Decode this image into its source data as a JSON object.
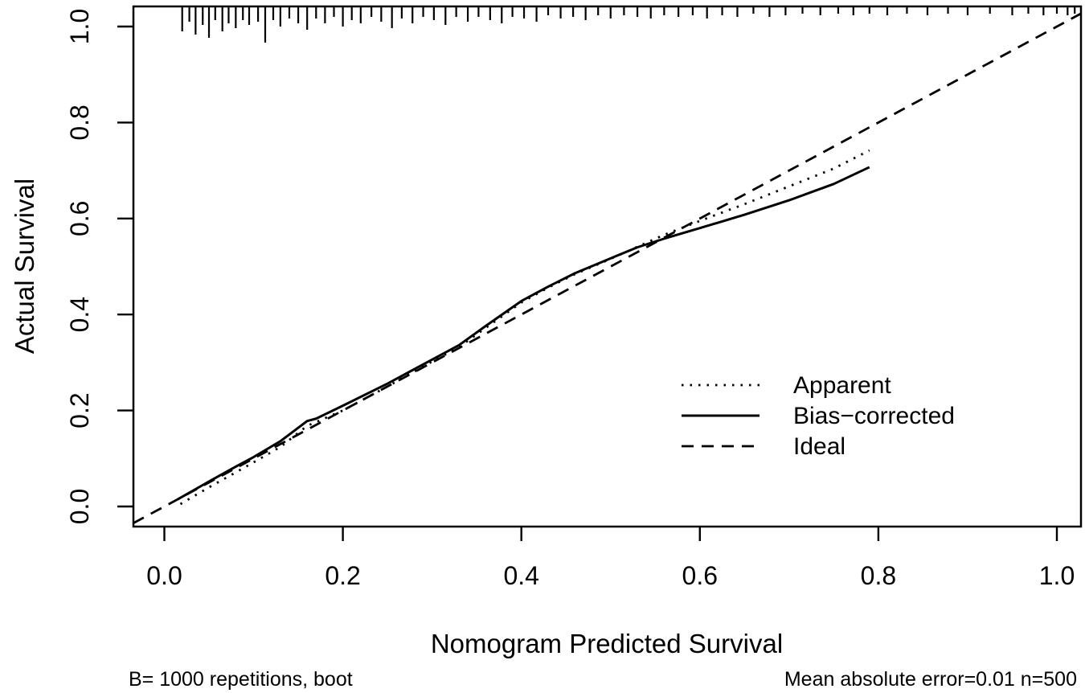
{
  "figure": {
    "background": "#ffffff",
    "ink_color": "#000000"
  },
  "axes": {
    "x_title": "Nomogram Predicted Survival",
    "y_title": "Actual Survival",
    "x_tick_labels": [
      "0.0",
      "0.2",
      "0.4",
      "0.6",
      "0.8",
      "1.0"
    ],
    "y_tick_labels": [
      "0.0",
      "0.2",
      "0.4",
      "0.6",
      "0.8",
      "1.0"
    ]
  },
  "footnotes": {
    "left": "B= 1000 repetitions, boot",
    "right": "Mean absolute error=0.01 n=500"
  },
  "legend": {
    "entries": [
      {
        "label": "Apparent",
        "style": "dotted"
      },
      {
        "label": "Bias−corrected",
        "style": "solid"
      },
      {
        "label": "Ideal",
        "style": "dashed"
      }
    ]
  },
  "chart_data": {
    "type": "line",
    "title": "",
    "xlabel": "Nomogram Predicted Survival",
    "ylabel": "Actual Survival",
    "xlim": [
      -0.04,
      1.04
    ],
    "ylim": [
      -0.04,
      1.04
    ],
    "x_tick_values": [
      0.0,
      0.2,
      0.4,
      0.6,
      0.8,
      1.0
    ],
    "y_tick_values": [
      0.0,
      0.2,
      0.4,
      0.6,
      0.8,
      1.0
    ],
    "grid": false,
    "legend_position": "inside-right-center",
    "series": [
      {
        "name": "Apparent",
        "style": "dotted",
        "x": [
          0.018,
          0.05,
          0.08,
          0.1,
          0.13,
          0.16,
          0.17,
          0.2,
          0.25,
          0.3,
          0.33,
          0.36,
          0.4,
          0.43,
          0.46,
          0.5,
          0.53,
          0.56,
          0.6,
          0.65,
          0.7,
          0.75,
          0.79
        ],
        "y": [
          0.005,
          0.04,
          0.071,
          0.092,
          0.124,
          0.168,
          0.176,
          0.2,
          0.25,
          0.302,
          0.332,
          0.372,
          0.425,
          0.456,
          0.484,
          0.516,
          0.541,
          0.566,
          0.595,
          0.63,
          0.667,
          0.704,
          0.742
        ]
      },
      {
        "name": "Bias-corrected",
        "style": "solid",
        "x": [
          0.015,
          0.05,
          0.08,
          0.1,
          0.13,
          0.16,
          0.17,
          0.2,
          0.25,
          0.3,
          0.33,
          0.36,
          0.4,
          0.43,
          0.46,
          0.5,
          0.53,
          0.56,
          0.6,
          0.65,
          0.7,
          0.75,
          0.79
        ],
        "y": [
          0.015,
          0.052,
          0.083,
          0.103,
          0.136,
          0.178,
          0.183,
          0.21,
          0.256,
          0.306,
          0.336,
          0.376,
          0.428,
          0.458,
          0.486,
          0.517,
          0.54,
          0.558,
          0.58,
          0.608,
          0.638,
          0.672,
          0.707
        ]
      },
      {
        "name": "Ideal",
        "style": "dashed",
        "x": [
          -0.035,
          1.027
        ],
        "y": [
          -0.035,
          1.027
        ]
      }
    ],
    "rug": {
      "comment": "predicted-value rug ticks along top axis; x in data units, len in px",
      "x": [
        0.02,
        0.028,
        0.035,
        0.043,
        0.05,
        0.057,
        0.065,
        0.072,
        0.08,
        0.088,
        0.095,
        0.105,
        0.113,
        0.122,
        0.13,
        0.14,
        0.15,
        0.16,
        0.17,
        0.18,
        0.19,
        0.2,
        0.21,
        0.22,
        0.232,
        0.243,
        0.255,
        0.266,
        0.278,
        0.29,
        0.302,
        0.315,
        0.327,
        0.34,
        0.352,
        0.365,
        0.378,
        0.39,
        0.403,
        0.417,
        0.43,
        0.444,
        0.458,
        0.472,
        0.486,
        0.5,
        0.515,
        0.53,
        0.545,
        0.56,
        0.576,
        0.592,
        0.608,
        0.625,
        0.642,
        0.66,
        0.678,
        0.696,
        0.715,
        0.735,
        0.755,
        0.772,
        0.79,
        0.81,
        0.832,
        0.855,
        0.878,
        0.9,
        0.925,
        0.95,
        0.968,
        0.985,
        1.0,
        1.012,
        1.02
      ],
      "len": [
        30,
        18,
        34,
        22,
        38,
        16,
        30,
        20,
        26,
        16,
        22,
        18,
        44,
        16,
        24,
        14,
        20,
        28,
        14,
        20,
        12,
        24,
        16,
        20,
        12,
        18,
        26,
        14,
        20,
        12,
        16,
        22,
        12,
        18,
        12,
        16,
        20,
        12,
        14,
        18,
        10,
        14,
        12,
        16,
        10,
        14,
        10,
        12,
        14,
        10,
        12,
        10,
        14,
        10,
        12,
        8,
        12,
        10,
        8,
        10,
        8,
        10,
        8,
        10,
        8,
        10,
        8,
        10,
        8,
        10,
        8,
        10,
        8,
        10,
        8
      ]
    },
    "annotations": [
      "B= 1000 repetitions, boot",
      "Mean absolute error=0.01 n=500"
    ]
  }
}
